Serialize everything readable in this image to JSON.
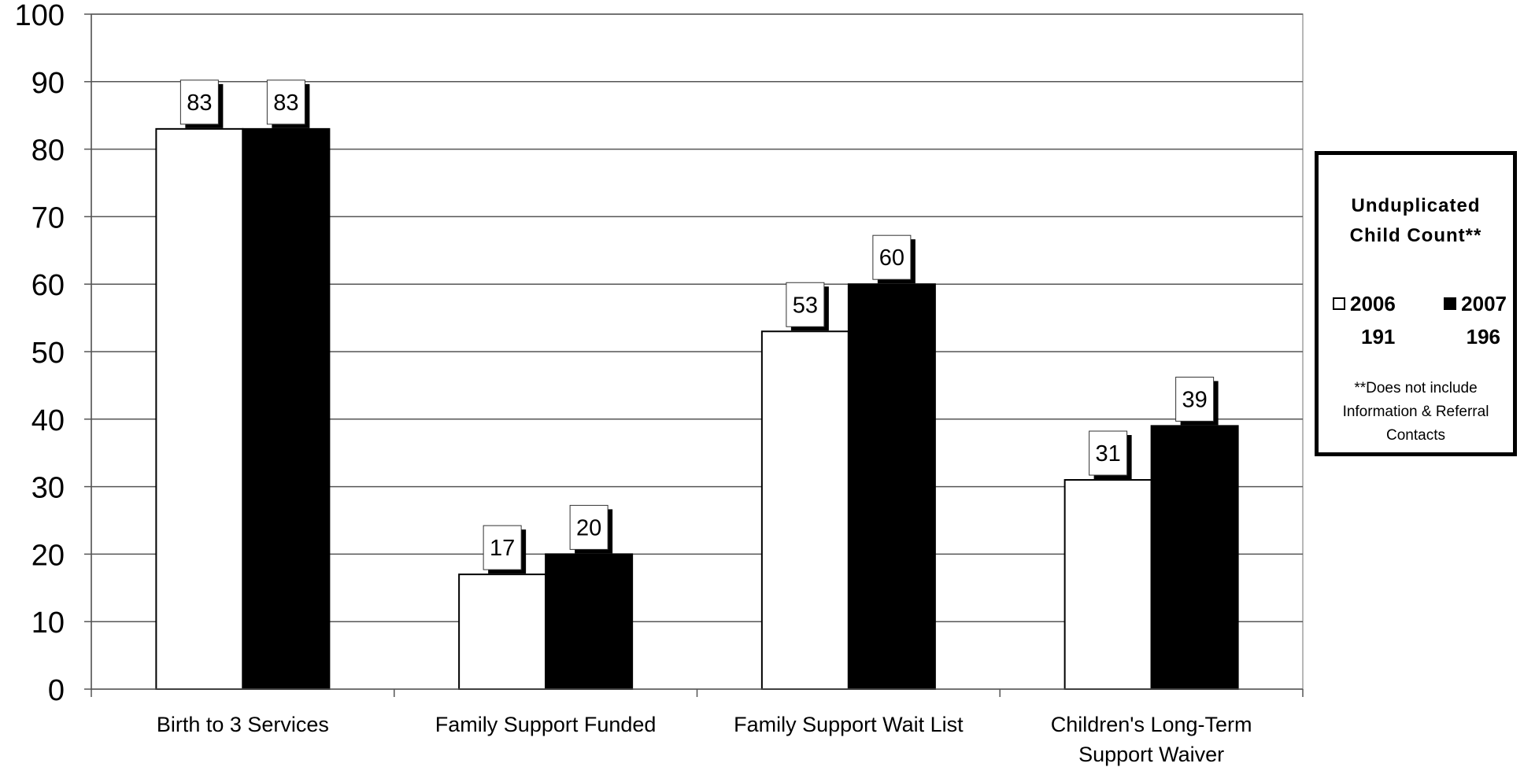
{
  "chart_data": {
    "type": "bar",
    "categories": [
      "Birth to 3 Services",
      "Family Support Funded",
      "Family Support Wait List",
      "Children's Long-Term\nSupport Waiver"
    ],
    "series": [
      {
        "name": "2006",
        "values": [
          83,
          17,
          53,
          31
        ],
        "color": "#ffffff"
      },
      {
        "name": "2007",
        "values": [
          83,
          20,
          60,
          39
        ],
        "color": "#000000"
      }
    ],
    "ylim": [
      0,
      100
    ],
    "yticks": [
      0,
      10,
      20,
      30,
      40,
      50,
      60,
      70,
      80,
      90,
      100
    ],
    "grid": true,
    "legend": {
      "placement": "right",
      "title": "Unduplicated\nChild Count**",
      "entries": [
        {
          "label": "2006",
          "count": "191"
        },
        {
          "label": "2007",
          "count": "196"
        }
      ],
      "note": "**Does not include Information & Referral Contacts"
    }
  }
}
